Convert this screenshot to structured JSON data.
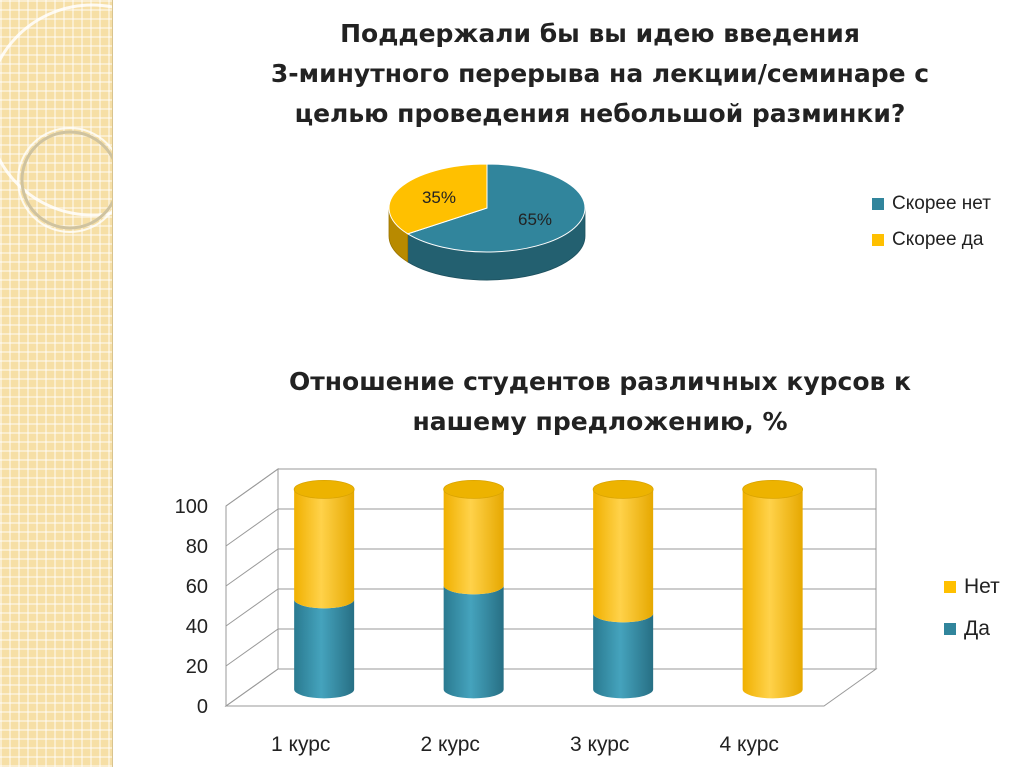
{
  "colors": {
    "yes": "#ffc000",
    "no": "#31859c",
    "sidebar": "#f6dfa6"
  },
  "chart_data": [
    {
      "type": "pie",
      "title": "Поддержали бы вы идею введения 3-минутного перерыва на лекции/семинаре с целью проведения небольшой разминки?",
      "title_lines": [
        "Поддержали бы вы идею введения",
        "3-минутного перерыва на лекции/семинаре с",
        "целью проведения небольшой разминки?"
      ],
      "slices": [
        {
          "label": "Скорее нет",
          "value": 65,
          "display": "65%"
        },
        {
          "label": "Скорее да",
          "value": 35,
          "display": "35%"
        }
      ],
      "legend_position": "right"
    },
    {
      "type": "bar",
      "stacked": true,
      "title": "Отношение студентов различных курсов к нашему предложению, %",
      "title_lines": [
        "Отношение студентов различных курсов к",
        "нашему предложению, %"
      ],
      "categories": [
        "1 курс",
        "2 курс",
        "3 курс",
        "4 курс"
      ],
      "series": [
        {
          "name": "Да",
          "values": [
            45,
            52,
            38,
            0
          ]
        },
        {
          "name": "Нет",
          "values": [
            55,
            48,
            62,
            100
          ]
        }
      ],
      "legend_order": [
        "Нет",
        "Да"
      ],
      "ylim": [
        0,
        100
      ],
      "yticks": [
        0,
        20,
        40,
        60,
        80,
        100
      ],
      "ytick_labels": [
        "0",
        "20",
        "40",
        "60",
        "80",
        "100"
      ],
      "grid": true,
      "legend_position": "right"
    }
  ]
}
